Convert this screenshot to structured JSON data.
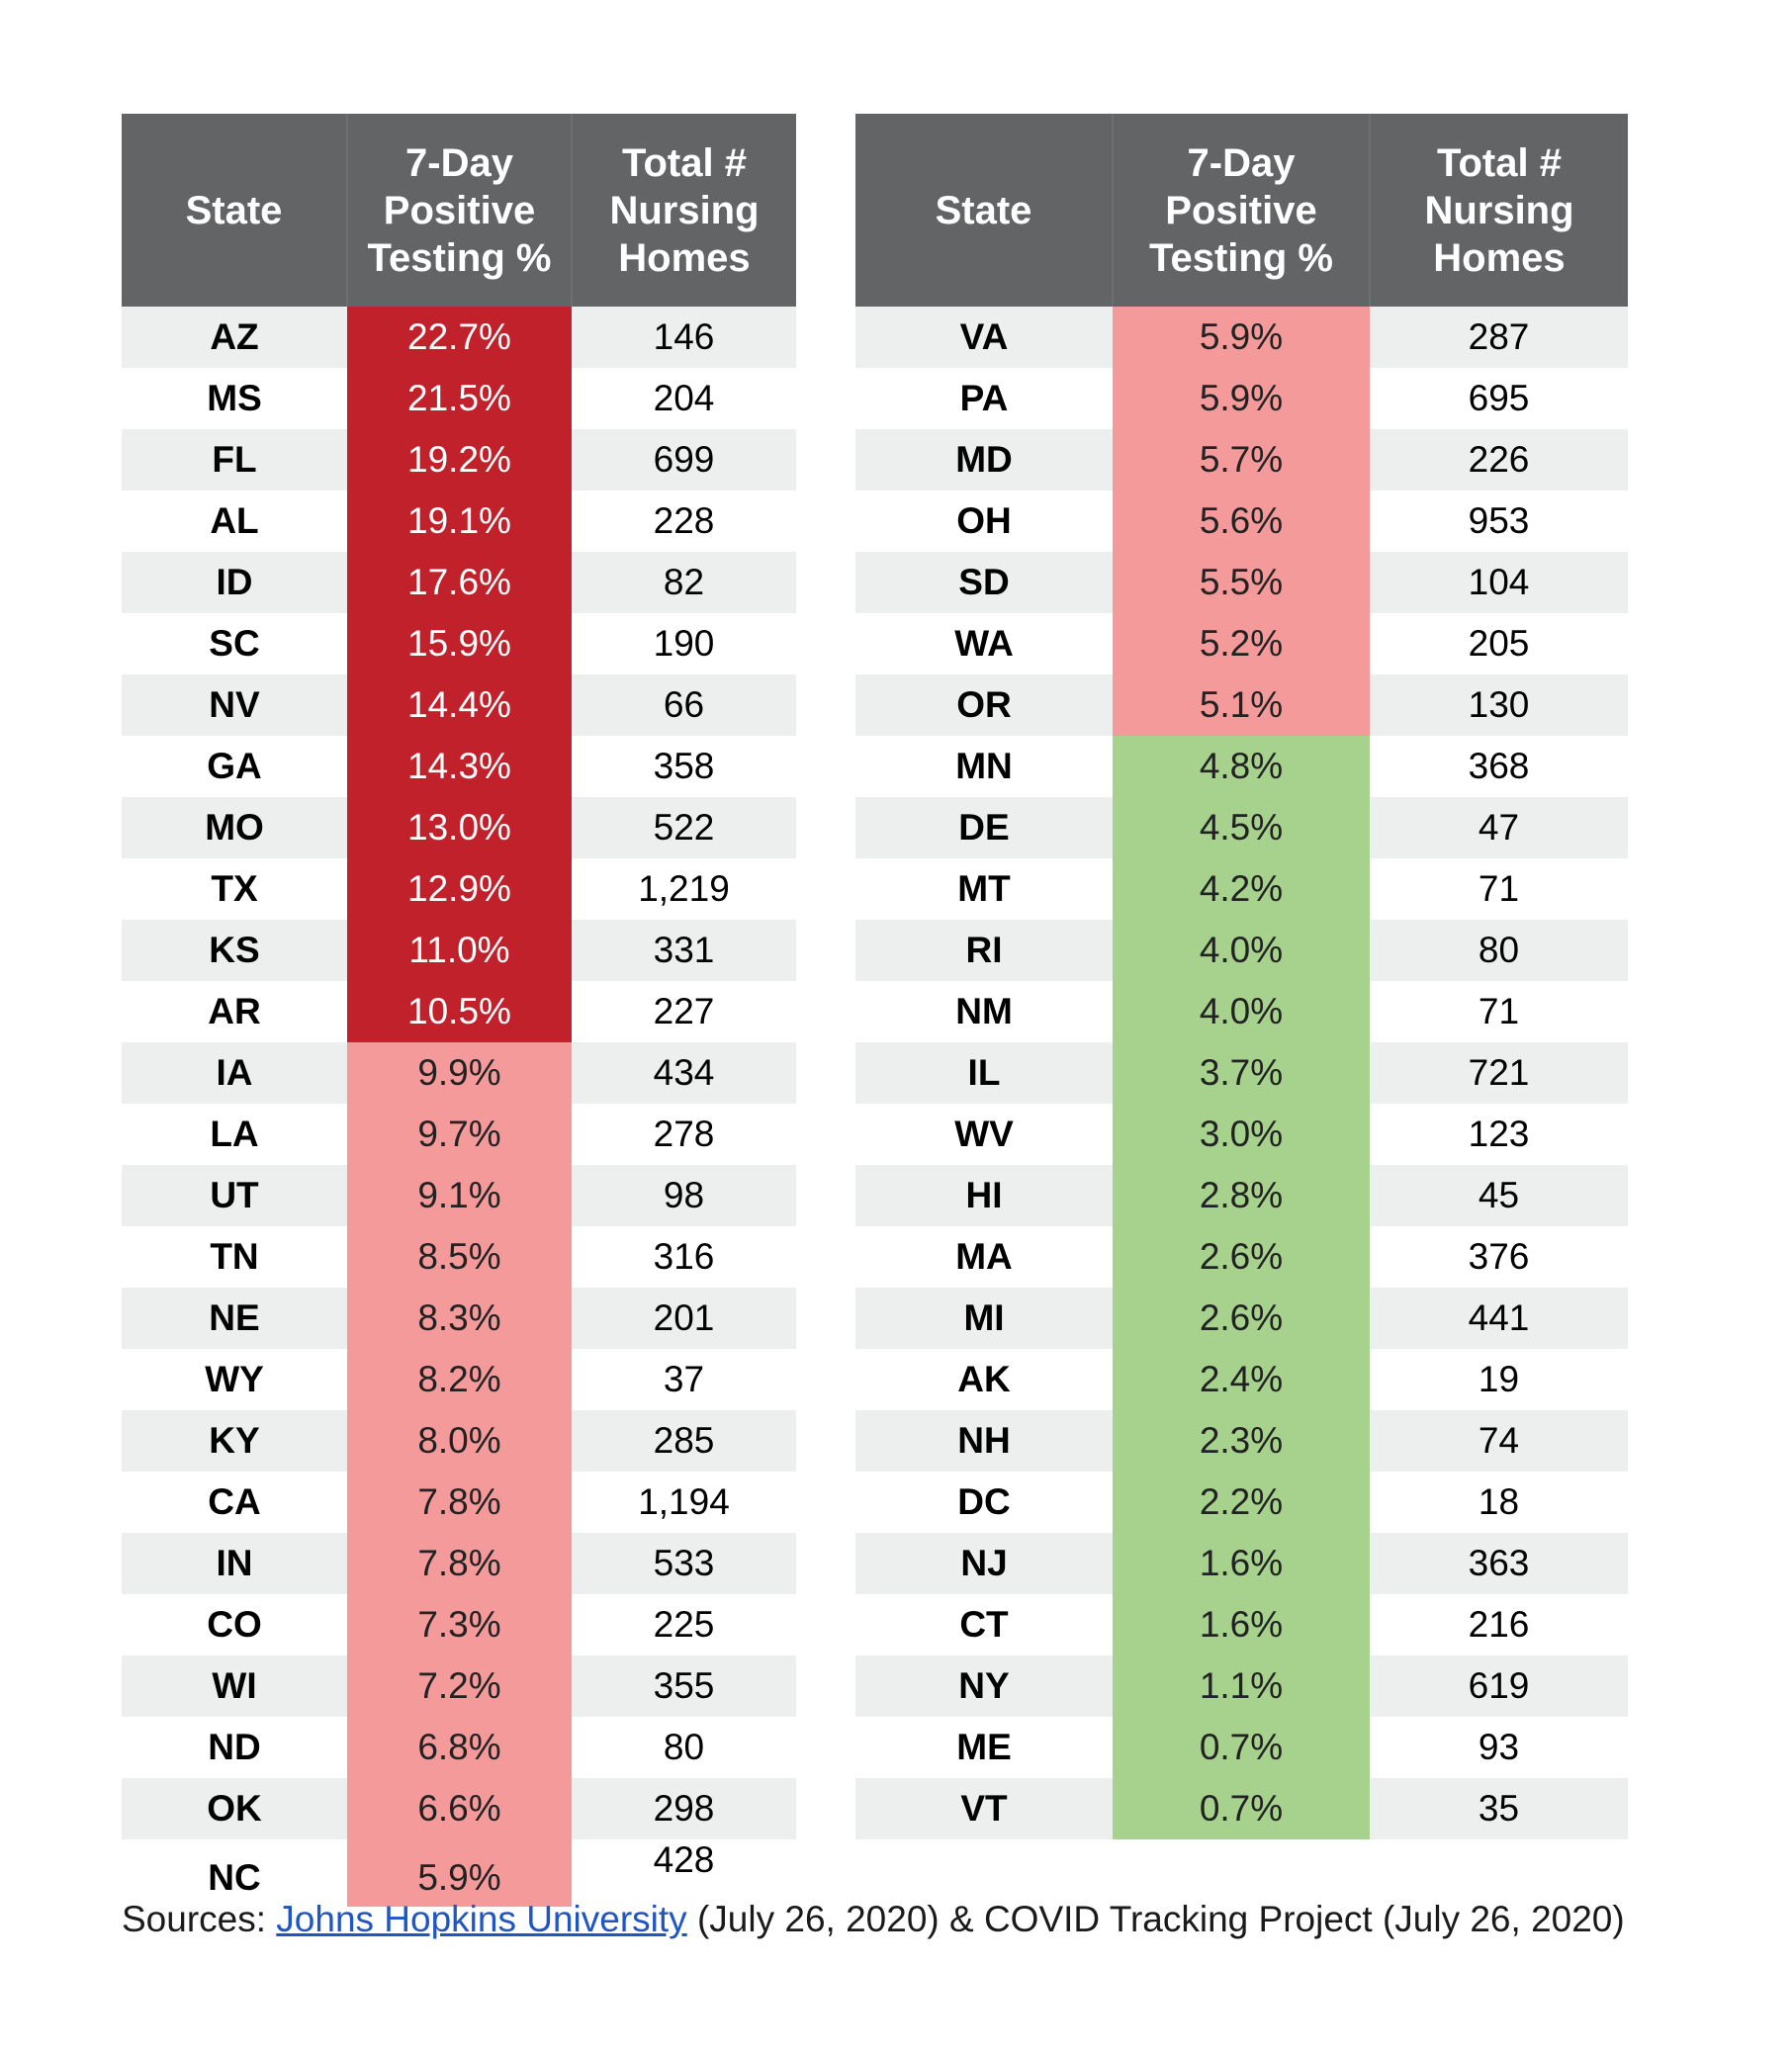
{
  "left_table": {
    "headers": [
      "State",
      "7-Day Positive Testing %",
      "Total # Nursing Homes"
    ],
    "rows": [
      {
        "state": "AZ",
        "pct": "22.7%",
        "homes": "146",
        "level": "hi"
      },
      {
        "state": "MS",
        "pct": "21.5%",
        "homes": "204",
        "level": "hi"
      },
      {
        "state": "FL",
        "pct": "19.2%",
        "homes": "699",
        "level": "hi"
      },
      {
        "state": "AL",
        "pct": "19.1%",
        "homes": "228",
        "level": "hi"
      },
      {
        "state": "ID",
        "pct": "17.6%",
        "homes": "82",
        "level": "hi"
      },
      {
        "state": "SC",
        "pct": "15.9%",
        "homes": "190",
        "level": "hi"
      },
      {
        "state": "NV",
        "pct": "14.4%",
        "homes": "66",
        "level": "hi"
      },
      {
        "state": "GA",
        "pct": "14.3%",
        "homes": "358",
        "level": "hi"
      },
      {
        "state": "MO",
        "pct": "13.0%",
        "homes": "522",
        "level": "hi"
      },
      {
        "state": "TX",
        "pct": "12.9%",
        "homes": "1,219",
        "level": "hi"
      },
      {
        "state": "KS",
        "pct": "11.0%",
        "homes": "331",
        "level": "hi"
      },
      {
        "state": "AR",
        "pct": "10.5%",
        "homes": "227",
        "level": "hi"
      },
      {
        "state": "IA",
        "pct": "9.9%",
        "homes": "434",
        "level": "md"
      },
      {
        "state": "LA",
        "pct": "9.7%",
        "homes": "278",
        "level": "md"
      },
      {
        "state": "UT",
        "pct": "9.1%",
        "homes": "98",
        "level": "md"
      },
      {
        "state": "TN",
        "pct": "8.5%",
        "homes": "316",
        "level": "md"
      },
      {
        "state": "NE",
        "pct": "8.3%",
        "homes": "201",
        "level": "md"
      },
      {
        "state": "WY",
        "pct": "8.2%",
        "homes": "37",
        "level": "md"
      },
      {
        "state": "KY",
        "pct": "8.0%",
        "homes": "285",
        "level": "md"
      },
      {
        "state": "CA",
        "pct": "7.8%",
        "homes": "1,194",
        "level": "md"
      },
      {
        "state": "IN",
        "pct": "7.8%",
        "homes": "533",
        "level": "md"
      },
      {
        "state": "CO",
        "pct": "7.3%",
        "homes": "225",
        "level": "md"
      },
      {
        "state": "WI",
        "pct": "7.2%",
        "homes": "355",
        "level": "md"
      },
      {
        "state": "ND",
        "pct": "6.8%",
        "homes": "80",
        "level": "md"
      },
      {
        "state": "OK",
        "pct": "6.6%",
        "homes": "298",
        "level": "md"
      },
      {
        "state": "NC",
        "pct": "5.9%",
        "homes": "428",
        "level": "md"
      }
    ]
  },
  "right_table": {
    "headers": [
      "State",
      "7-Day Positive Testing %",
      "Total # Nursing Homes"
    ],
    "rows": [
      {
        "state": "VA",
        "pct": "5.9%",
        "homes": "287",
        "level": "md"
      },
      {
        "state": "PA",
        "pct": "5.9%",
        "homes": "695",
        "level": "md"
      },
      {
        "state": "MD",
        "pct": "5.7%",
        "homes": "226",
        "level": "md"
      },
      {
        "state": "OH",
        "pct": "5.6%",
        "homes": "953",
        "level": "md"
      },
      {
        "state": "SD",
        "pct": "5.5%",
        "homes": "104",
        "level": "md"
      },
      {
        "state": "WA",
        "pct": "5.2%",
        "homes": "205",
        "level": "md"
      },
      {
        "state": "OR",
        "pct": "5.1%",
        "homes": "130",
        "level": "md"
      },
      {
        "state": "MN",
        "pct": "4.8%",
        "homes": "368",
        "level": "lo"
      },
      {
        "state": "DE",
        "pct": "4.5%",
        "homes": "47",
        "level": "lo"
      },
      {
        "state": "MT",
        "pct": "4.2%",
        "homes": "71",
        "level": "lo"
      },
      {
        "state": "RI",
        "pct": "4.0%",
        "homes": "80",
        "level": "lo"
      },
      {
        "state": "NM",
        "pct": "4.0%",
        "homes": "71",
        "level": "lo"
      },
      {
        "state": "IL",
        "pct": "3.7%",
        "homes": "721",
        "level": "lo"
      },
      {
        "state": "WV",
        "pct": "3.0%",
        "homes": "123",
        "level": "lo"
      },
      {
        "state": "HI",
        "pct": "2.8%",
        "homes": "45",
        "level": "lo"
      },
      {
        "state": "MA",
        "pct": "2.6%",
        "homes": "376",
        "level": "lo"
      },
      {
        "state": "MI",
        "pct": "2.6%",
        "homes": "441",
        "level": "lo"
      },
      {
        "state": "AK",
        "pct": "2.4%",
        "homes": "19",
        "level": "lo"
      },
      {
        "state": "NH",
        "pct": "2.3%",
        "homes": "74",
        "level": "lo"
      },
      {
        "state": "DC",
        "pct": "2.2%",
        "homes": "18",
        "level": "lo"
      },
      {
        "state": "NJ",
        "pct": "1.6%",
        "homes": "363",
        "level": "lo"
      },
      {
        "state": "CT",
        "pct": "1.6%",
        "homes": "216",
        "level": "lo"
      },
      {
        "state": "NY",
        "pct": "1.1%",
        "homes": "619",
        "level": "lo"
      },
      {
        "state": "ME",
        "pct": "0.7%",
        "homes": "93",
        "level": "lo"
      },
      {
        "state": "VT",
        "pct": "0.7%",
        "homes": "35",
        "level": "lo"
      }
    ]
  },
  "colors": {
    "header_bg": "#636466",
    "high": "#c0212b",
    "medium": "#f49a9a",
    "low": "#a7d28d",
    "stripe": "#edeeee",
    "link": "#1f56c4"
  },
  "sources": {
    "prefix": "Sources: ",
    "link_text": "Johns Hopkins University",
    "suffix": " (July 26, 2020) & COVID Tracking Project (July 26, 2020)"
  }
}
